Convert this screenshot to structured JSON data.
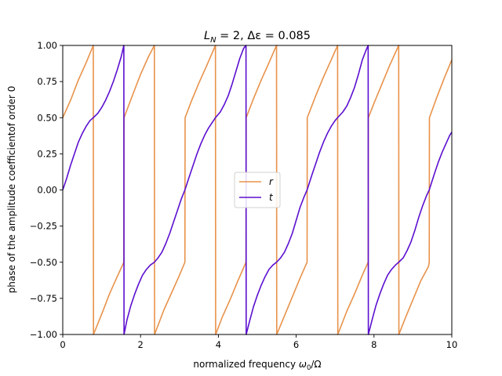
{
  "chart_data": {
    "type": "line",
    "title": "L_N = 2, Δε = 0.085",
    "title_parts": {
      "a": "L",
      "a_sub": "N",
      "b": " = 2, Δε = 0.085"
    },
    "xlabel": "normalized frequency ω₀/Ω",
    "xlabel_parts": {
      "text": "normalized frequency ",
      "math": "ω",
      "math_sub": "0",
      "tail": "/Ω"
    },
    "ylabel": "phase of the amplitude coefficientof order 0",
    "xlim": [
      0,
      10
    ],
    "ylim": [
      -1.0,
      1.0
    ],
    "xticks": [
      0,
      2,
      4,
      6,
      8,
      10
    ],
    "xtick_labels": [
      "0",
      "2",
      "4",
      "6",
      "8",
      "10"
    ],
    "yticks": [
      -1.0,
      -0.75,
      -0.5,
      -0.25,
      0.0,
      0.25,
      0.5,
      0.75,
      1.0
    ],
    "ytick_labels": [
      "−1.00",
      "−0.75",
      "−0.50",
      "−0.25",
      "0.00",
      "0.25",
      "0.50",
      "0.75",
      "1.00"
    ],
    "grid": false,
    "legend_position": "center",
    "series": [
      {
        "name": "r",
        "color": "#e8924a",
        "x": [
          0.0,
          0.2,
          0.4,
          0.6,
          0.785,
          0.79,
          1.0,
          1.2,
          1.4,
          1.57,
          1.575,
          1.8,
          2.0,
          2.2,
          2.355,
          2.36,
          2.6,
          2.8,
          3.0,
          3.14,
          3.145,
          3.3,
          3.5,
          3.7,
          3.925,
          3.93,
          4.1,
          4.3,
          4.5,
          4.71,
          4.715,
          4.9,
          5.1,
          5.3,
          5.495,
          5.5,
          5.7,
          5.9,
          6.1,
          6.28,
          6.285,
          6.5,
          6.7,
          6.9,
          7.065,
          7.07,
          7.3,
          7.5,
          7.7,
          7.85,
          7.855,
          8.0,
          8.2,
          8.4,
          8.635,
          8.64,
          8.8,
          9.0,
          9.2,
          9.4,
          9.42,
          9.425,
          9.6,
          9.8,
          10.0
        ],
        "y": [
          0.5,
          0.62,
          0.76,
          0.88,
          1.0,
          -1.0,
          -0.86,
          -0.72,
          -0.6,
          -0.5,
          0.5,
          0.66,
          0.8,
          0.92,
          1.0,
          -1.0,
          -0.83,
          -0.71,
          -0.59,
          -0.5,
          0.5,
          0.61,
          0.74,
          0.86,
          1.0,
          -1.0,
          -0.88,
          -0.76,
          -0.63,
          -0.5,
          0.5,
          0.63,
          0.76,
          0.88,
          1.0,
          -1.0,
          -0.87,
          -0.74,
          -0.61,
          -0.5,
          0.5,
          0.65,
          0.78,
          0.9,
          1.0,
          -1.0,
          -0.84,
          -0.72,
          -0.59,
          -0.5,
          0.5,
          0.6,
          0.73,
          0.86,
          1.0,
          -1.0,
          -0.89,
          -0.76,
          -0.63,
          -0.53,
          -0.5,
          0.5,
          0.63,
          0.77,
          0.9
        ]
      },
      {
        "name": "t",
        "color": "#5b0fcf",
        "x": [
          0.0,
          0.1,
          0.2,
          0.3,
          0.4,
          0.5,
          0.6,
          0.7,
          0.785,
          0.9,
          1.0,
          1.1,
          1.2,
          1.3,
          1.4,
          1.5,
          1.57,
          1.575,
          1.65,
          1.75,
          1.85,
          1.95,
          2.05,
          2.15,
          2.25,
          2.355,
          2.45,
          2.55,
          2.65,
          2.75,
          2.85,
          2.95,
          3.05,
          3.14,
          3.25,
          3.35,
          3.45,
          3.55,
          3.65,
          3.75,
          3.85,
          3.925,
          4.05,
          4.15,
          4.25,
          4.35,
          4.45,
          4.55,
          4.65,
          4.71,
          4.715,
          4.8,
          4.9,
          5.0,
          5.1,
          5.2,
          5.3,
          5.4,
          5.495,
          5.6,
          5.7,
          5.8,
          5.9,
          6.0,
          6.1,
          6.2,
          6.28,
          6.4,
          6.5,
          6.6,
          6.7,
          6.8,
          6.9,
          7.0,
          7.065,
          7.2,
          7.3,
          7.4,
          7.5,
          7.6,
          7.7,
          7.8,
          7.85,
          7.855,
          7.95,
          8.05,
          8.15,
          8.25,
          8.35,
          8.45,
          8.55,
          8.635,
          8.75,
          8.85,
          8.95,
          9.05,
          9.15,
          9.25,
          9.35,
          9.42,
          9.55,
          9.65,
          9.75,
          9.85,
          9.95,
          10.0
        ],
        "y": [
          0.0,
          0.08,
          0.17,
          0.25,
          0.33,
          0.39,
          0.44,
          0.48,
          0.5,
          0.53,
          0.57,
          0.62,
          0.68,
          0.75,
          0.83,
          0.92,
          1.0,
          -1.0,
          -0.9,
          -0.8,
          -0.72,
          -0.65,
          -0.59,
          -0.55,
          -0.52,
          -0.5,
          -0.47,
          -0.43,
          -0.37,
          -0.3,
          -0.22,
          -0.14,
          -0.06,
          0.0,
          0.09,
          0.17,
          0.25,
          0.32,
          0.38,
          0.43,
          0.47,
          0.5,
          0.54,
          0.59,
          0.65,
          0.73,
          0.82,
          0.91,
          0.98,
          1.0,
          -1.0,
          -0.91,
          -0.81,
          -0.73,
          -0.66,
          -0.6,
          -0.55,
          -0.52,
          -0.5,
          -0.47,
          -0.43,
          -0.37,
          -0.3,
          -0.21,
          -0.12,
          -0.05,
          0.0,
          0.1,
          0.18,
          0.26,
          0.33,
          0.39,
          0.44,
          0.48,
          0.5,
          0.54,
          0.58,
          0.64,
          0.71,
          0.8,
          0.9,
          0.97,
          1.0,
          -1.0,
          -0.9,
          -0.8,
          -0.72,
          -0.65,
          -0.59,
          -0.55,
          -0.52,
          -0.5,
          -0.47,
          -0.42,
          -0.36,
          -0.28,
          -0.19,
          -0.11,
          -0.04,
          0.0,
          0.11,
          0.19,
          0.26,
          0.32,
          0.38,
          0.4
        ]
      }
    ]
  }
}
